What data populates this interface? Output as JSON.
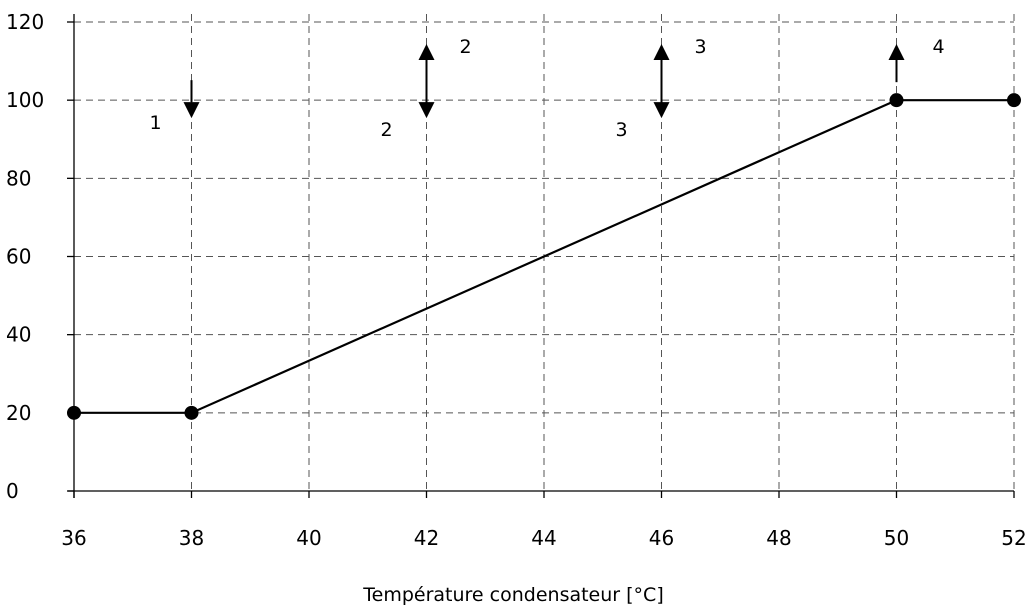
{
  "chart_data": {
    "type": "line",
    "title": "",
    "xlabel": "Température condensateur [°C]",
    "ylabel": "",
    "xlim": [
      36,
      52
    ],
    "ylim": [
      0,
      120
    ],
    "x_ticks": [
      36,
      38,
      40,
      42,
      44,
      46,
      48,
      50,
      52
    ],
    "y_ticks": [
      0,
      20,
      40,
      60,
      80,
      100,
      120
    ],
    "x_tick_labels": [
      "36",
      "38",
      "40",
      "42",
      "44",
      "46",
      "48",
      "50",
      "52"
    ],
    "y_tick_labels": [
      "0",
      "20",
      "40",
      "60",
      "80",
      "100",
      "120"
    ],
    "grid": true,
    "series": [
      {
        "x": [
          36,
          38,
          50,
          52
        ],
        "y": [
          20,
          20,
          100,
          100
        ],
        "markers": [
          0,
          1,
          2,
          3
        ]
      }
    ],
    "annotations": [
      {
        "x": 38,
        "direction": "down",
        "label": "1"
      },
      {
        "x": 42,
        "direction": "both",
        "label_up": "2",
        "label_down": "2"
      },
      {
        "x": 46,
        "direction": "both",
        "label_up": "3",
        "label_down": "3"
      },
      {
        "x": 50,
        "direction": "up",
        "label": "4"
      }
    ]
  }
}
